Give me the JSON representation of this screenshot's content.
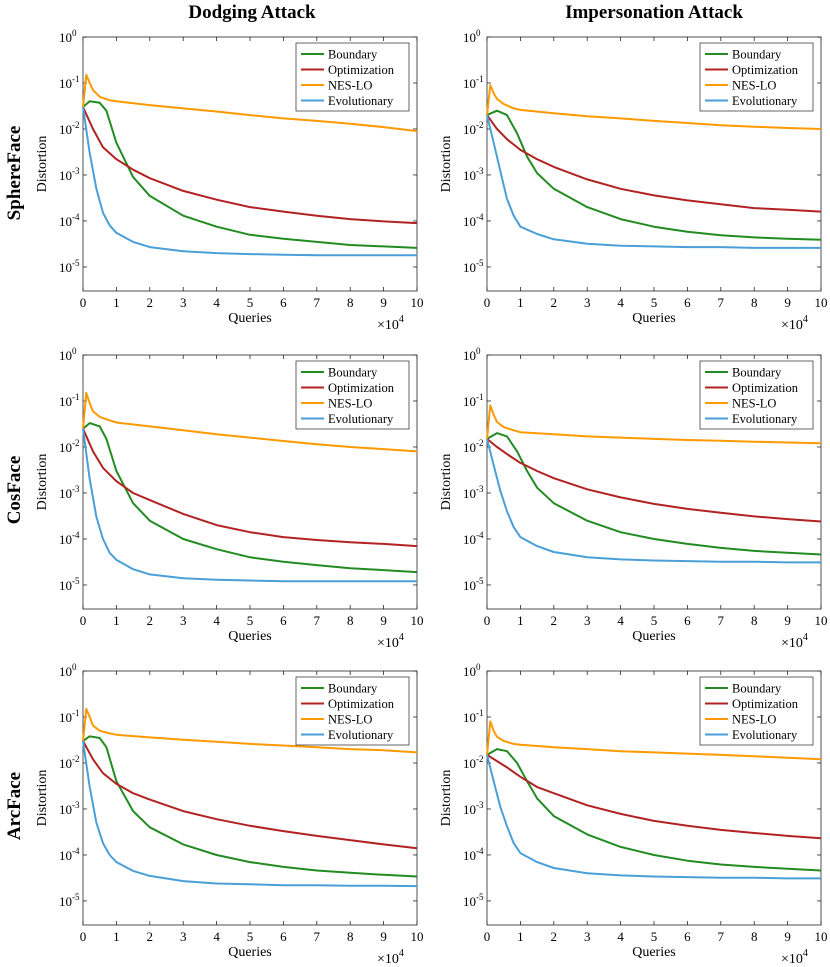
{
  "figure": {
    "column_titles": [
      "Dodging Attack",
      "Impersonation Attack"
    ],
    "row_labels": [
      "SphereFace",
      "CosFace",
      "ArcFace"
    ]
  },
  "colors": {
    "Boundary": "#228B22",
    "Optimization": "#B22222",
    "NES-LO": "#FF9900",
    "Evolutionary": "#4A9FD8"
  },
  "axes": {
    "xlabel": "Queries",
    "ylabel": "Distortion",
    "x_exponent_label": "×10",
    "x_exponent_power": "4",
    "x_ticks": [
      0,
      1,
      2,
      3,
      4,
      5,
      6,
      7,
      8,
      9,
      10
    ],
    "y_tick_powers": [
      "0",
      "-1",
      "-2",
      "-3",
      "-4",
      "-5"
    ],
    "y_tick_base": "10"
  },
  "chart_data": [
    {
      "type": "line",
      "title": "",
      "xlabel": "Queries",
      "ylabel": "Distortion",
      "y_scale": "log",
      "xlim": [
        0,
        10
      ],
      "ylim": [
        3e-06,
        1
      ],
      "legend": "top-right",
      "series": [
        {
          "name": "Boundary",
          "x": [
            0,
            0.2,
            0.5,
            0.7,
            1,
            1.5,
            2,
            3,
            4,
            5,
            6,
            7,
            8,
            9,
            10
          ],
          "y": [
            0.03,
            0.04,
            0.037,
            0.025,
            0.005,
            0.0009,
            0.00035,
            0.00013,
            7.5e-05,
            5e-05,
            4.1e-05,
            3.5e-05,
            3e-05,
            2.8e-05,
            2.6e-05
          ]
        },
        {
          "name": "Optimization",
          "x": [
            0,
            0.3,
            0.6,
            1,
            1.5,
            2,
            3,
            4,
            5,
            6,
            7,
            8,
            9,
            10
          ],
          "y": [
            0.03,
            0.01,
            0.004,
            0.0022,
            0.0013,
            0.00085,
            0.00045,
            0.00029,
            0.0002,
            0.00016,
            0.00013,
            0.00011,
            9.8e-05,
            9e-05
          ]
        },
        {
          "name": "NES-LO",
          "x": [
            0,
            0.1,
            0.2,
            0.3,
            0.5,
            0.8,
            1,
            2,
            3,
            4,
            5,
            6,
            7,
            8,
            9,
            10
          ],
          "y": [
            0.03,
            0.15,
            0.1,
            0.07,
            0.05,
            0.042,
            0.04,
            0.033,
            0.028,
            0.024,
            0.02,
            0.017,
            0.015,
            0.013,
            0.011,
            0.009
          ]
        },
        {
          "name": "Evolutionary",
          "x": [
            0,
            0.2,
            0.4,
            0.6,
            0.8,
            1,
            1.5,
            2,
            3,
            4,
            5,
            6,
            7,
            8,
            9,
            10
          ],
          "y": [
            0.03,
            0.003,
            0.0005,
            0.00015,
            8e-05,
            5.5e-05,
            3.5e-05,
            2.7e-05,
            2.2e-05,
            2e-05,
            1.9e-05,
            1.85e-05,
            1.8e-05,
            1.8e-05,
            1.8e-05,
            1.8e-05
          ]
        }
      ]
    },
    {
      "type": "line",
      "title": "",
      "xlabel": "Queries",
      "ylabel": "Distortion",
      "y_scale": "log",
      "xlim": [
        0,
        10
      ],
      "ylim": [
        3e-06,
        1
      ],
      "legend": "top-right",
      "series": [
        {
          "name": "Boundary",
          "x": [
            0,
            0.3,
            0.6,
            0.9,
            1.2,
            1.5,
            2,
            3,
            4,
            5,
            6,
            7,
            8,
            9,
            10
          ],
          "y": [
            0.02,
            0.025,
            0.02,
            0.008,
            0.0025,
            0.0011,
            0.0005,
            0.0002,
            0.00011,
            7.5e-05,
            5.8e-05,
            4.9e-05,
            4.4e-05,
            4.1e-05,
            3.9e-05
          ]
        },
        {
          "name": "Optimization",
          "x": [
            0,
            0.3,
            0.6,
            1,
            1.5,
            2,
            3,
            4,
            5,
            6,
            7,
            8,
            9,
            10
          ],
          "y": [
            0.02,
            0.01,
            0.006,
            0.0035,
            0.0022,
            0.0015,
            0.0008,
            0.0005,
            0.00036,
            0.00028,
            0.00023,
            0.00019,
            0.000175,
            0.00016
          ]
        },
        {
          "name": "NES-LO",
          "x": [
            0,
            0.1,
            0.2,
            0.3,
            0.5,
            0.8,
            1,
            2,
            3,
            4,
            5,
            6,
            7,
            8,
            9,
            10
          ],
          "y": [
            0.02,
            0.09,
            0.06,
            0.045,
            0.035,
            0.028,
            0.026,
            0.022,
            0.019,
            0.017,
            0.015,
            0.0135,
            0.012,
            0.0112,
            0.0105,
            0.01
          ]
        },
        {
          "name": "Evolutionary",
          "x": [
            0,
            0.2,
            0.4,
            0.6,
            0.8,
            1,
            1.5,
            2,
            3,
            4,
            5,
            6,
            7,
            8,
            9,
            10
          ],
          "y": [
            0.02,
            0.005,
            0.0012,
            0.0003,
            0.00013,
            7.5e-05,
            5.2e-05,
            4e-05,
            3.2e-05,
            2.9e-05,
            2.8e-05,
            2.7e-05,
            2.7e-05,
            2.6e-05,
            2.6e-05,
            2.6e-05
          ]
        }
      ]
    },
    {
      "type": "line",
      "title": "",
      "xlabel": "Queries",
      "ylabel": "Distortion",
      "y_scale": "log",
      "xlim": [
        0,
        10
      ],
      "ylim": [
        3e-06,
        1
      ],
      "legend": "top-right",
      "series": [
        {
          "name": "Boundary",
          "x": [
            0,
            0.2,
            0.5,
            0.7,
            1,
            1.5,
            2,
            3,
            4,
            5,
            6,
            7,
            8,
            9,
            10
          ],
          "y": [
            0.025,
            0.033,
            0.028,
            0.015,
            0.003,
            0.0006,
            0.00025,
            0.0001,
            6e-05,
            4e-05,
            3.2e-05,
            2.7e-05,
            2.3e-05,
            2.1e-05,
            1.9e-05
          ]
        },
        {
          "name": "Optimization",
          "x": [
            0,
            0.3,
            0.6,
            1,
            1.5,
            2,
            3,
            4,
            5,
            6,
            7,
            8,
            9,
            10
          ],
          "y": [
            0.025,
            0.008,
            0.0035,
            0.0018,
            0.001,
            0.0007,
            0.00035,
            0.0002,
            0.00014,
            0.00011,
            9.5e-05,
            8.5e-05,
            7.8e-05,
            7e-05
          ]
        },
        {
          "name": "NES-LO",
          "x": [
            0,
            0.1,
            0.2,
            0.3,
            0.5,
            0.8,
            1,
            2,
            3,
            4,
            5,
            6,
            7,
            8,
            9,
            10
          ],
          "y": [
            0.025,
            0.15,
            0.09,
            0.06,
            0.045,
            0.038,
            0.034,
            0.028,
            0.023,
            0.019,
            0.016,
            0.0135,
            0.0115,
            0.01,
            0.009,
            0.008
          ]
        },
        {
          "name": "Evolutionary",
          "x": [
            0,
            0.2,
            0.4,
            0.6,
            0.8,
            1,
            1.5,
            2,
            3,
            4,
            5,
            6,
            7,
            8,
            9,
            10
          ],
          "y": [
            0.025,
            0.002,
            0.0003,
            0.0001,
            5e-05,
            3.5e-05,
            2.2e-05,
            1.7e-05,
            1.4e-05,
            1.3e-05,
            1.25e-05,
            1.2e-05,
            1.2e-05,
            1.2e-05,
            1.2e-05,
            1.2e-05
          ]
        }
      ]
    },
    {
      "type": "line",
      "title": "",
      "xlabel": "Queries",
      "ylabel": "Distortion",
      "y_scale": "log",
      "xlim": [
        0,
        10
      ],
      "ylim": [
        3e-06,
        1
      ],
      "legend": "top-right",
      "series": [
        {
          "name": "Boundary",
          "x": [
            0,
            0.3,
            0.6,
            0.9,
            1.2,
            1.5,
            2,
            3,
            4,
            5,
            6,
            7,
            8,
            9,
            10
          ],
          "y": [
            0.015,
            0.02,
            0.017,
            0.008,
            0.003,
            0.0013,
            0.0006,
            0.00025,
            0.00014,
            0.0001,
            7.8e-05,
            6.4e-05,
            5.5e-05,
            5e-05,
            4.6e-05
          ]
        },
        {
          "name": "Optimization",
          "x": [
            0,
            0.3,
            0.6,
            1,
            1.5,
            2,
            3,
            4,
            5,
            6,
            7,
            8,
            9,
            10
          ],
          "y": [
            0.015,
            0.01,
            0.007,
            0.0045,
            0.003,
            0.0021,
            0.0012,
            0.0008,
            0.00058,
            0.00045,
            0.00037,
            0.00031,
            0.00027,
            0.00024
          ]
        },
        {
          "name": "NES-LO",
          "x": [
            0,
            0.1,
            0.2,
            0.3,
            0.5,
            0.8,
            1,
            2,
            3,
            4,
            5,
            6,
            7,
            8,
            9,
            10
          ],
          "y": [
            0.015,
            0.08,
            0.05,
            0.035,
            0.027,
            0.023,
            0.021,
            0.019,
            0.017,
            0.016,
            0.015,
            0.0142,
            0.0136,
            0.013,
            0.0125,
            0.012
          ]
        },
        {
          "name": "Evolutionary",
          "x": [
            0,
            0.2,
            0.4,
            0.6,
            0.8,
            1,
            1.5,
            2,
            3,
            4,
            5,
            6,
            7,
            8,
            9,
            10
          ],
          "y": [
            0.015,
            0.004,
            0.0011,
            0.0004,
            0.00018,
            0.00011,
            7e-05,
            5.2e-05,
            4e-05,
            3.6e-05,
            3.4e-05,
            3.3e-05,
            3.2e-05,
            3.2e-05,
            3.1e-05,
            3.1e-05
          ]
        }
      ]
    },
    {
      "type": "line",
      "title": "",
      "xlabel": "Queries",
      "ylabel": "Distortion",
      "y_scale": "log",
      "xlim": [
        0,
        10
      ],
      "ylim": [
        3e-06,
        1
      ],
      "legend": "top-right",
      "series": [
        {
          "name": "Boundary",
          "x": [
            0,
            0.2,
            0.5,
            0.7,
            1,
            1.5,
            2,
            3,
            4,
            5,
            6,
            7,
            8,
            9,
            10
          ],
          "y": [
            0.03,
            0.038,
            0.035,
            0.022,
            0.004,
            0.0009,
            0.0004,
            0.00017,
            0.0001,
            7e-05,
            5.5e-05,
            4.6e-05,
            4.1e-05,
            3.7e-05,
            3.4e-05
          ]
        },
        {
          "name": "Optimization",
          "x": [
            0,
            0.3,
            0.6,
            1,
            1.5,
            2,
            3,
            4,
            5,
            6,
            7,
            8,
            9,
            10
          ],
          "y": [
            0.03,
            0.012,
            0.006,
            0.0035,
            0.0022,
            0.0016,
            0.0009,
            0.0006,
            0.00043,
            0.00033,
            0.00026,
            0.00021,
            0.00017,
            0.00014
          ]
        },
        {
          "name": "NES-LO",
          "x": [
            0,
            0.1,
            0.2,
            0.3,
            0.5,
            0.8,
            1,
            2,
            3,
            4,
            5,
            6,
            7,
            8,
            9,
            10
          ],
          "y": [
            0.03,
            0.15,
            0.1,
            0.065,
            0.05,
            0.044,
            0.041,
            0.036,
            0.032,
            0.029,
            0.026,
            0.024,
            0.022,
            0.02,
            0.019,
            0.017
          ]
        },
        {
          "name": "Evolutionary",
          "x": [
            0,
            0.2,
            0.4,
            0.6,
            0.8,
            1,
            1.5,
            2,
            3,
            4,
            5,
            6,
            7,
            8,
            9,
            10
          ],
          "y": [
            0.03,
            0.003,
            0.0005,
            0.00018,
            0.0001,
            7e-05,
            4.5e-05,
            3.5e-05,
            2.7e-05,
            2.4e-05,
            2.3e-05,
            2.2e-05,
            2.2e-05,
            2.15e-05,
            2.15e-05,
            2.1e-05
          ]
        }
      ]
    },
    {
      "type": "line",
      "title": "",
      "xlabel": "Queries",
      "ylabel": "Distortion",
      "y_scale": "log",
      "xlim": [
        0,
        10
      ],
      "ylim": [
        3e-06,
        1
      ],
      "legend": "top-right",
      "series": [
        {
          "name": "Boundary",
          "x": [
            0,
            0.3,
            0.6,
            0.9,
            1.2,
            1.5,
            2,
            3,
            4,
            5,
            6,
            7,
            8,
            9,
            10
          ],
          "y": [
            0.015,
            0.02,
            0.018,
            0.01,
            0.004,
            0.0017,
            0.0007,
            0.00028,
            0.00015,
            0.0001,
            7.5e-05,
            6.2e-05,
            5.5e-05,
            5e-05,
            4.6e-05
          ]
        },
        {
          "name": "Optimization",
          "x": [
            0,
            0.3,
            0.6,
            1,
            1.5,
            2,
            3,
            4,
            5,
            6,
            7,
            8,
            9,
            10
          ],
          "y": [
            0.015,
            0.011,
            0.008,
            0.005,
            0.003,
            0.0022,
            0.0012,
            0.00078,
            0.00055,
            0.00043,
            0.00035,
            0.0003,
            0.00026,
            0.00023
          ]
        },
        {
          "name": "NES-LO",
          "x": [
            0,
            0.1,
            0.2,
            0.3,
            0.5,
            0.8,
            1,
            2,
            3,
            4,
            5,
            6,
            7,
            8,
            9,
            10
          ],
          "y": [
            0.015,
            0.08,
            0.05,
            0.037,
            0.03,
            0.026,
            0.025,
            0.022,
            0.02,
            0.018,
            0.017,
            0.016,
            0.015,
            0.014,
            0.013,
            0.012
          ]
        },
        {
          "name": "Evolutionary",
          "x": [
            0,
            0.2,
            0.4,
            0.6,
            0.8,
            1,
            1.5,
            2,
            3,
            4,
            5,
            6,
            7,
            8,
            9,
            10
          ],
          "y": [
            0.015,
            0.004,
            0.0011,
            0.00042,
            0.00018,
            0.00011,
            7e-05,
            5.2e-05,
            4e-05,
            3.6e-05,
            3.4e-05,
            3.3e-05,
            3.2e-05,
            3.2e-05,
            3.1e-05,
            3.1e-05
          ]
        }
      ]
    }
  ]
}
